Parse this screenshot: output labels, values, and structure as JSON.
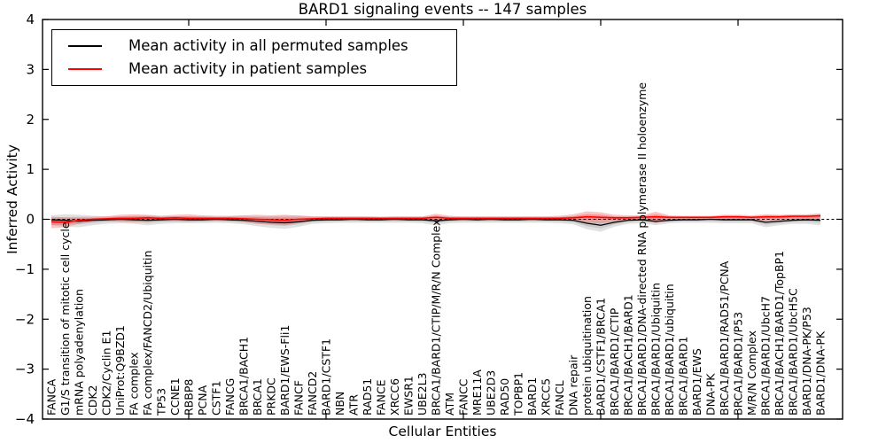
{
  "chart_data": {
    "type": "line",
    "title": "BARD1 signaling events -- 147 samples",
    "xlabel": "Cellular Entities",
    "ylabel": "Inferred Activity",
    "layout": {
      "ylim": [
        -4,
        4
      ],
      "yticks": [
        4,
        3,
        2,
        1,
        0,
        -1,
        -2,
        -3,
        -4
      ],
      "xtick_positions": [
        10,
        20,
        30,
        40,
        50
      ],
      "grid": false,
      "zero_line": "dashed",
      "legend_position": "upper left"
    },
    "categories": [
      "FANCA",
      "G1/S transition of mitotic cell cycle",
      "mRNA polyadenylation",
      "CDK2",
      "CDK2/Cyclin E1",
      "UniProt:Q9BZD1",
      "FA complex",
      "FA complex/FANCD2/Ubiquitin",
      "TP53",
      "CCNE1",
      "RBBP8",
      "PCNA",
      "CSTF1",
      "FANCG",
      "BRCA1/BACH1",
      "BRCA1",
      "PRKDC",
      "BARD1/EWS-Fli1",
      "FANCF",
      "FANCD2",
      "BARD1/CSTF1",
      "NBN",
      "ATR",
      "RAD51",
      "FANCE",
      "XRCC6",
      "EWSR1",
      "UBE2L3",
      "BRCA1/BARD1/CTIP/M/R/N Complex",
      "ATM",
      "FANCC",
      "MRE11A",
      "UBE2D3",
      "RAD50",
      "TOPBP1",
      "BARD1",
      "XRCC5",
      "FANCL",
      "DNA repair",
      "protein ubiquitination",
      "BARD1/CSTF1/BRCA1",
      "BRCA1/BARD1/CTIP",
      "BRCA1/BACH1/BARD1",
      "BRCA1/BARD1/DNA-directed RNA polymerase II holoenzyme",
      "BRCA1/BARD1/Ubiquitin",
      "BRCA1/BARD1/ubiquitin",
      "BRCA1/BARD1",
      "BARD1/EWS",
      "DNA-PK",
      "BRCA1/BARD1/RAD51/PCNA",
      "BRCA1/BARD1/P53",
      "M/R/N Complex",
      "BRCA1/BARD1/UbcH7",
      "BRCA1/BACH1/BARD1/TopBP1",
      "BRCA1/BARD1/UbcH5C",
      "BARD1/DNA-PK/P53",
      "BARD1/DNA-PK"
    ],
    "series": [
      {
        "name": "Mean activity in all permuted samples",
        "color": "#000000",
        "band_color": "#b0b0b0",
        "values": [
          -0.01,
          -0.02,
          -0.04,
          -0.02,
          -0.01,
          0.0,
          -0.01,
          -0.02,
          -0.01,
          0.0,
          -0.01,
          -0.01,
          0.0,
          -0.01,
          -0.02,
          -0.04,
          -0.06,
          -0.07,
          -0.05,
          -0.02,
          -0.01,
          -0.01,
          0.0,
          -0.01,
          -0.01,
          0.0,
          -0.01,
          -0.01,
          -0.03,
          -0.01,
          0.0,
          -0.01,
          0.0,
          -0.01,
          -0.01,
          0.0,
          -0.01,
          -0.01,
          -0.02,
          -0.08,
          -0.12,
          -0.06,
          -0.02,
          -0.01,
          -0.04,
          -0.02,
          -0.01,
          -0.01,
          0.0,
          -0.01,
          -0.01,
          -0.01,
          -0.06,
          -0.04,
          -0.02,
          -0.01,
          -0.02
        ],
        "band_upper": [
          0.08,
          0.1,
          0.09,
          0.07,
          0.06,
          0.06,
          0.07,
          0.08,
          0.06,
          0.06,
          0.06,
          0.06,
          0.05,
          0.06,
          0.07,
          0.06,
          0.06,
          0.07,
          0.08,
          0.06,
          0.05,
          0.05,
          0.05,
          0.05,
          0.05,
          0.05,
          0.05,
          0.05,
          0.06,
          0.05,
          0.05,
          0.05,
          0.05,
          0.05,
          0.05,
          0.05,
          0.05,
          0.05,
          0.06,
          0.06,
          0.05,
          0.05,
          0.05,
          0.05,
          0.06,
          0.05,
          0.05,
          0.05,
          0.05,
          0.05,
          0.05,
          0.05,
          0.06,
          0.06,
          0.06,
          0.07,
          0.07
        ],
        "band_lower": [
          -0.12,
          -0.15,
          -0.16,
          -0.12,
          -0.09,
          -0.08,
          -0.09,
          -0.12,
          -0.09,
          -0.08,
          -0.08,
          -0.08,
          -0.07,
          -0.08,
          -0.1,
          -0.14,
          -0.17,
          -0.19,
          -0.15,
          -0.09,
          -0.08,
          -0.07,
          -0.07,
          -0.07,
          -0.07,
          -0.07,
          -0.07,
          -0.08,
          -0.12,
          -0.08,
          -0.07,
          -0.07,
          -0.07,
          -0.07,
          -0.07,
          -0.07,
          -0.07,
          -0.08,
          -0.1,
          -0.2,
          -0.25,
          -0.15,
          -0.09,
          -0.08,
          -0.12,
          -0.08,
          -0.07,
          -0.07,
          -0.07,
          -0.08,
          -0.08,
          -0.08,
          -0.16,
          -0.12,
          -0.09,
          -0.09,
          -0.12
        ]
      },
      {
        "name": "Mean activity in patient samples",
        "color": "#ff0000",
        "band_color": "#ee6a6a",
        "values": [
          -0.05,
          -0.06,
          -0.02,
          0.0,
          0.01,
          0.02,
          0.02,
          0.03,
          0.02,
          0.03,
          0.02,
          0.02,
          0.02,
          0.02,
          0.01,
          0.0,
          -0.01,
          -0.02,
          0.0,
          0.01,
          0.02,
          0.02,
          0.02,
          0.02,
          0.02,
          0.02,
          0.02,
          0.02,
          0.04,
          0.02,
          0.02,
          0.02,
          0.02,
          0.02,
          0.02,
          0.02,
          0.02,
          0.02,
          0.03,
          0.05,
          0.04,
          0.03,
          0.03,
          0.04,
          0.05,
          0.04,
          0.04,
          0.04,
          0.04,
          0.05,
          0.05,
          0.04,
          0.05,
          0.05,
          0.06,
          0.06,
          0.07
        ],
        "band_upper": [
          0.05,
          0.04,
          0.05,
          0.05,
          0.06,
          0.09,
          0.1,
          0.09,
          0.07,
          0.09,
          0.1,
          0.08,
          0.07,
          0.07,
          0.08,
          0.09,
          0.08,
          0.09,
          0.07,
          0.06,
          0.06,
          0.06,
          0.06,
          0.06,
          0.05,
          0.06,
          0.06,
          0.06,
          0.11,
          0.07,
          0.06,
          0.06,
          0.06,
          0.06,
          0.06,
          0.06,
          0.06,
          0.07,
          0.1,
          0.16,
          0.14,
          0.09,
          0.08,
          0.08,
          0.15,
          0.08,
          0.07,
          0.07,
          0.07,
          0.09,
          0.09,
          0.08,
          0.1,
          0.09,
          0.1,
          0.1,
          0.12
        ],
        "band_lower": [
          -0.18,
          -0.16,
          -0.09,
          -0.05,
          -0.04,
          -0.05,
          -0.06,
          -0.05,
          -0.04,
          -0.04,
          -0.05,
          -0.04,
          -0.03,
          -0.04,
          -0.06,
          -0.09,
          -0.1,
          -0.12,
          -0.07,
          -0.04,
          -0.03,
          -0.02,
          -0.02,
          -0.02,
          -0.02,
          -0.02,
          -0.02,
          -0.02,
          -0.04,
          -0.03,
          -0.02,
          -0.02,
          -0.02,
          -0.02,
          -0.02,
          -0.02,
          -0.02,
          -0.02,
          -0.04,
          -0.07,
          -0.08,
          -0.04,
          -0.02,
          -0.01,
          -0.08,
          -0.02,
          -0.01,
          -0.01,
          -0.01,
          -0.01,
          -0.01,
          -0.01,
          -0.03,
          -0.02,
          -0.01,
          -0.01,
          -0.02
        ]
      }
    ]
  }
}
